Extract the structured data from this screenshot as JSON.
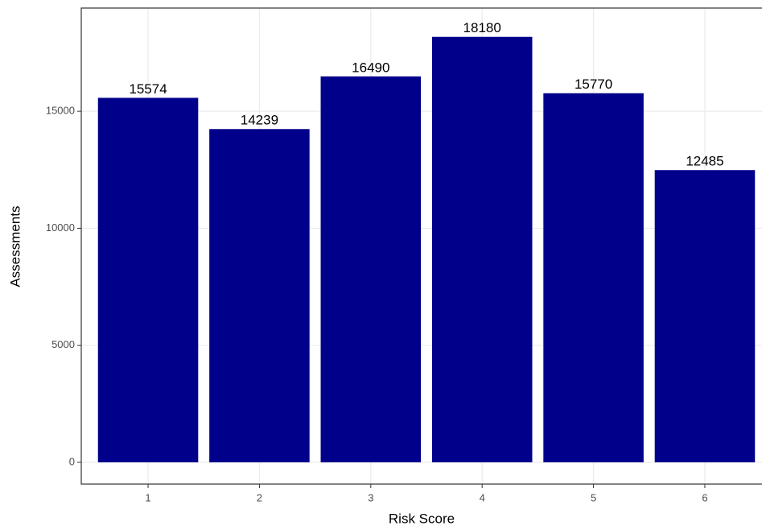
{
  "chart_data": {
    "type": "bar",
    "x_label": "Risk Score",
    "y_label": "Assessments",
    "categories": [
      "1",
      "2",
      "3",
      "4",
      "5",
      "6"
    ],
    "values": [
      15574,
      14239,
      16490,
      18180,
      15770,
      12485
    ],
    "color": "#00008b",
    "ylim": [
      -930,
      19410
    ],
    "yticks": [
      0,
      5000,
      10000,
      15000
    ],
    "grid": true,
    "value_labels_shown": true
  }
}
